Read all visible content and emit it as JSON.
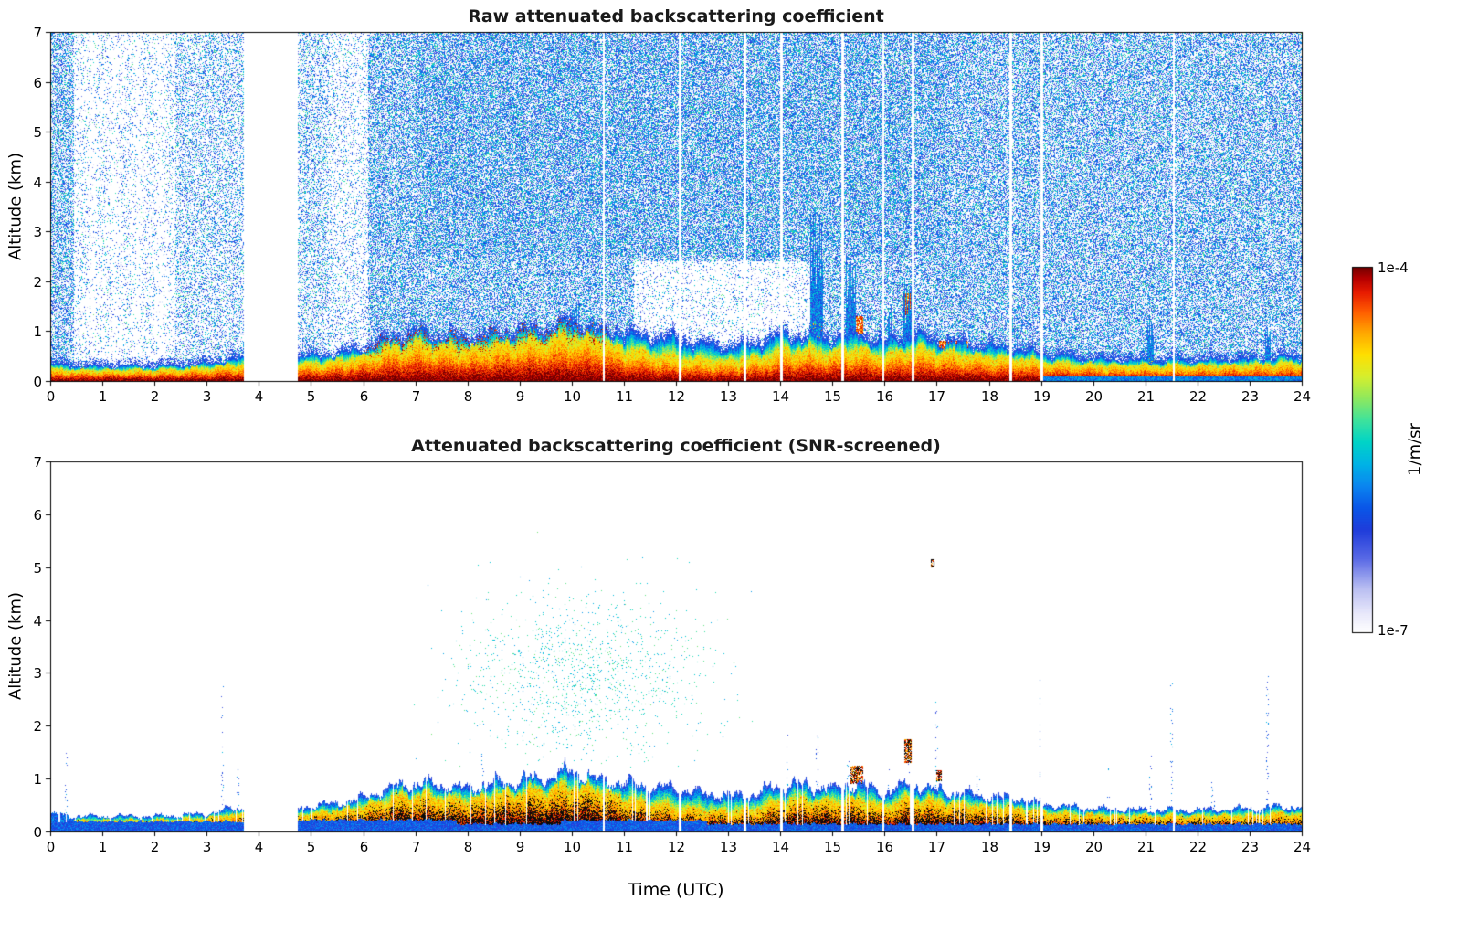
{
  "figure": {
    "background": "#ffffff",
    "xlabel": "Time (UTC)",
    "colorbar": {
      "label": "1/m/sr",
      "max_label": "1e-4",
      "min_label": "1e-7",
      "scale": "log",
      "colormap_stops": [
        [
          0.0,
          "#ffffff"
        ],
        [
          0.05,
          "#e9e9fb"
        ],
        [
          0.12,
          "#b9bef2"
        ],
        [
          0.2,
          "#5a6ae6"
        ],
        [
          0.28,
          "#1f3ddb"
        ],
        [
          0.34,
          "#0a57e8"
        ],
        [
          0.4,
          "#0b86f0"
        ],
        [
          0.46,
          "#00b4e6"
        ],
        [
          0.52,
          "#00d4c8"
        ],
        [
          0.58,
          "#3fe39d"
        ],
        [
          0.64,
          "#8fe95f"
        ],
        [
          0.7,
          "#d6ef2f"
        ],
        [
          0.76,
          "#ffe000"
        ],
        [
          0.82,
          "#ffa800"
        ],
        [
          0.88,
          "#ff5a00"
        ],
        [
          0.93,
          "#e81c00"
        ],
        [
          0.97,
          "#b40000"
        ],
        [
          1.0,
          "#700000"
        ]
      ]
    }
  },
  "chart_data": [
    {
      "type": "heatmap",
      "title": "Raw attenuated backscattering coefficient",
      "xlabel": "",
      "ylabel": "Altitude (km)",
      "xlim": [
        0,
        24
      ],
      "ylim": [
        0,
        7
      ],
      "xticks": [
        0,
        1,
        2,
        3,
        4,
        5,
        6,
        7,
        8,
        9,
        10,
        11,
        12,
        13,
        14,
        15,
        16,
        17,
        18,
        19,
        20,
        21,
        22,
        23,
        24
      ],
      "yticks": [
        0,
        1,
        2,
        3,
        4,
        5,
        6,
        7
      ],
      "value_min": "1e-7",
      "value_max": "1e-4",
      "units": "1/m/sr",
      "data_gap_utc": [
        3.72,
        4.75
      ],
      "thin_gaps_utc": [
        10.62,
        12.08,
        13.32,
        14.02,
        15.2,
        15.98,
        16.55,
        18.42,
        19.02,
        21.55
      ],
      "boundary_layer": {
        "hours": [
          0,
          0.5,
          1,
          1.5,
          2,
          2.5,
          3,
          3.5,
          4,
          4.5,
          5,
          5.5,
          6,
          6.5,
          7,
          7.5,
          8,
          8.5,
          9,
          9.5,
          10,
          10.5,
          11,
          11.5,
          12,
          12.5,
          13,
          13.5,
          14,
          14.5,
          15,
          15.5,
          16,
          16.5,
          17,
          17.5,
          18,
          18.5,
          19,
          19.5,
          20,
          20.5,
          21,
          21.5,
          22,
          22.5,
          23,
          23.5,
          24
        ],
        "red_top_km": [
          0.22,
          0.2,
          0.2,
          0.2,
          0.2,
          0.22,
          0.25,
          0.3,
          0.3,
          0.3,
          0.32,
          0.38,
          0.45,
          0.62,
          0.7,
          0.65,
          0.6,
          0.67,
          0.72,
          0.77,
          0.85,
          0.78,
          0.6,
          0.5,
          0.42,
          0.38,
          0.35,
          0.4,
          0.55,
          0.58,
          0.55,
          0.6,
          0.45,
          0.6,
          0.55,
          0.5,
          0.45,
          0.42,
          0.35,
          0.32,
          0.3,
          0.29,
          0.28,
          0.28,
          0.28,
          0.29,
          0.3,
          0.32,
          0.32
        ],
        "layer_top_km": [
          0.35,
          0.3,
          0.3,
          0.3,
          0.3,
          0.32,
          0.35,
          0.45,
          0.45,
          0.45,
          0.5,
          0.55,
          0.65,
          0.85,
          0.95,
          0.9,
          0.85,
          0.95,
          1.0,
          1.05,
          1.2,
          1.0,
          0.95,
          0.9,
          0.85,
          0.75,
          0.7,
          0.72,
          0.95,
          0.9,
          0.85,
          0.95,
          0.75,
          0.95,
          0.8,
          0.75,
          0.7,
          0.65,
          0.55,
          0.5,
          0.45,
          0.43,
          0.42,
          0.42,
          0.42,
          0.43,
          0.45,
          0.48,
          0.48
        ]
      },
      "noise_zones": [
        {
          "t0": 0,
          "t1": 0.45,
          "d": 0.5
        },
        {
          "t0": 0.45,
          "t1": 2.4,
          "d": 0.14
        },
        {
          "t0": 2.4,
          "t1": 3.72,
          "d": 0.3
        },
        {
          "t0": 4.75,
          "t1": 5.35,
          "d": 0.32
        },
        {
          "t0": 5.35,
          "t1": 6.1,
          "d": 0.16
        },
        {
          "t0": 6.1,
          "t1": 24,
          "d": 0.52
        }
      ],
      "clear_band": {
        "t0": 11.2,
        "t1": 14.6,
        "a_max": 2.4,
        "factor": 0.22
      },
      "plumes": [
        {
          "t": 10.05,
          "w": 0.18,
          "top": 1.4
        },
        {
          "t": 14.7,
          "w": 0.24,
          "top": 3.3
        },
        {
          "t": 15.35,
          "w": 0.2,
          "top": 2.3
        },
        {
          "t": 16.1,
          "w": 0.1,
          "top": 1.5
        },
        {
          "t": 16.45,
          "w": 0.2,
          "top": 2.0
        },
        {
          "t": 21.1,
          "w": 0.12,
          "top": 1.2
        },
        {
          "t": 23.35,
          "w": 0.1,
          "top": 1.0
        }
      ],
      "blobs": [
        {
          "t0": 15.3,
          "t1": 15.6,
          "a0": 0.95,
          "a1": 1.3
        },
        {
          "t0": 16.35,
          "t1": 16.55,
          "a0": 1.3,
          "a1": 1.75
        },
        {
          "t0": 17.05,
          "t1": 17.6,
          "a0": 0.55,
          "a1": 0.8
        }
      ]
    },
    {
      "type": "heatmap",
      "title": "Attenuated backscattering coefficient (SNR-screened)",
      "xlabel": "Time (UTC)",
      "ylabel": "Altitude (km)",
      "xlim": [
        0,
        24
      ],
      "ylim": [
        0,
        7
      ],
      "xticks": [
        0,
        1,
        2,
        3,
        4,
        5,
        6,
        7,
        8,
        9,
        10,
        11,
        12,
        13,
        14,
        15,
        16,
        17,
        18,
        19,
        20,
        21,
        22,
        23,
        24
      ],
      "yticks": [
        0,
        1,
        2,
        3,
        4,
        5,
        6,
        7
      ],
      "value_min": "1e-7",
      "value_max": "1e-4",
      "units": "1/m/sr",
      "data_gap_utc": [
        3.72,
        4.75
      ],
      "thin_gaps_utc": [
        10.62,
        12.08,
        13.32,
        14.02,
        15.2,
        15.98,
        16.55,
        18.42,
        19.02,
        21.55
      ],
      "boundary_layer": {
        "hours": [
          0,
          0.5,
          1,
          1.5,
          2,
          2.5,
          3,
          3.5,
          4,
          4.5,
          5,
          5.5,
          6,
          6.5,
          7,
          7.5,
          8,
          8.5,
          9,
          9.5,
          10,
          10.5,
          11,
          11.5,
          12,
          12.5,
          13,
          13.5,
          14,
          14.5,
          15,
          15.5,
          16,
          16.5,
          17,
          17.5,
          18,
          18.5,
          19,
          19.5,
          20,
          20.5,
          21,
          21.5,
          22,
          22.5,
          23,
          23.5,
          24
        ],
        "red_top_km": [
          0.22,
          0.2,
          0.2,
          0.2,
          0.2,
          0.22,
          0.25,
          0.3,
          0.3,
          0.3,
          0.32,
          0.38,
          0.45,
          0.62,
          0.7,
          0.65,
          0.6,
          0.67,
          0.72,
          0.77,
          0.85,
          0.78,
          0.6,
          0.5,
          0.42,
          0.38,
          0.35,
          0.4,
          0.55,
          0.58,
          0.55,
          0.6,
          0.45,
          0.6,
          0.55,
          0.5,
          0.45,
          0.42,
          0.35,
          0.32,
          0.3,
          0.29,
          0.28,
          0.28,
          0.28,
          0.29,
          0.3,
          0.32,
          0.32
        ],
        "layer_top_km": [
          0.35,
          0.3,
          0.3,
          0.3,
          0.3,
          0.32,
          0.35,
          0.45,
          0.45,
          0.45,
          0.5,
          0.55,
          0.65,
          0.85,
          0.95,
          0.9,
          0.85,
          0.95,
          1.0,
          1.05,
          1.2,
          1.0,
          0.95,
          0.9,
          0.85,
          0.75,
          0.7,
          0.72,
          0.95,
          0.9,
          0.85,
          0.95,
          0.75,
          0.95,
          0.8,
          0.75,
          0.7,
          0.65,
          0.55,
          0.5,
          0.45,
          0.43,
          0.42,
          0.42,
          0.42,
          0.43,
          0.45,
          0.48,
          0.48
        ]
      },
      "green_cloud": {
        "t_center": 10.2,
        "t_sigma": 1.7,
        "a_center": 2.9,
        "a_sigma": 1.15,
        "max_density": 0.07,
        "t_min": 6.9,
        "t_max": 13.6,
        "a_min": 1.2,
        "a_max": 6.35
      },
      "sparse_columns": [
        {
          "t": 0.3,
          "top": 1.6
        },
        {
          "t": 3.3,
          "top": 3.2
        },
        {
          "t": 3.6,
          "top": 1.2
        },
        {
          "t": 8.3,
          "top": 1.5
        },
        {
          "t": 14.15,
          "top": 2.0
        },
        {
          "t": 14.7,
          "top": 2.0
        },
        {
          "t": 15.3,
          "top": 1.4
        },
        {
          "t": 16.1,
          "top": 1.2
        },
        {
          "t": 16.45,
          "top": 1.3
        },
        {
          "t": 17.0,
          "top": 2.6
        },
        {
          "t": 17.8,
          "top": 1.1
        },
        {
          "t": 19.0,
          "top": 3.0
        },
        {
          "t": 20.3,
          "top": 1.2
        },
        {
          "t": 21.1,
          "top": 1.5
        },
        {
          "t": 21.5,
          "top": 2.8
        },
        {
          "t": 22.3,
          "top": 1.1
        },
        {
          "t": 23.35,
          "top": 3.1
        }
      ],
      "blobs": [
        {
          "t0": 15.35,
          "t1": 15.6,
          "a0": 0.9,
          "a1": 1.25
        },
        {
          "t0": 16.38,
          "t1": 16.55,
          "a0": 1.3,
          "a1": 1.75
        },
        {
          "t0": 16.88,
          "t1": 16.96,
          "a0": 5.0,
          "a1": 5.15
        },
        {
          "t0": 17.0,
          "t1": 17.1,
          "a0": 0.95,
          "a1": 1.15
        }
      ],
      "saturated_black": true
    }
  ]
}
